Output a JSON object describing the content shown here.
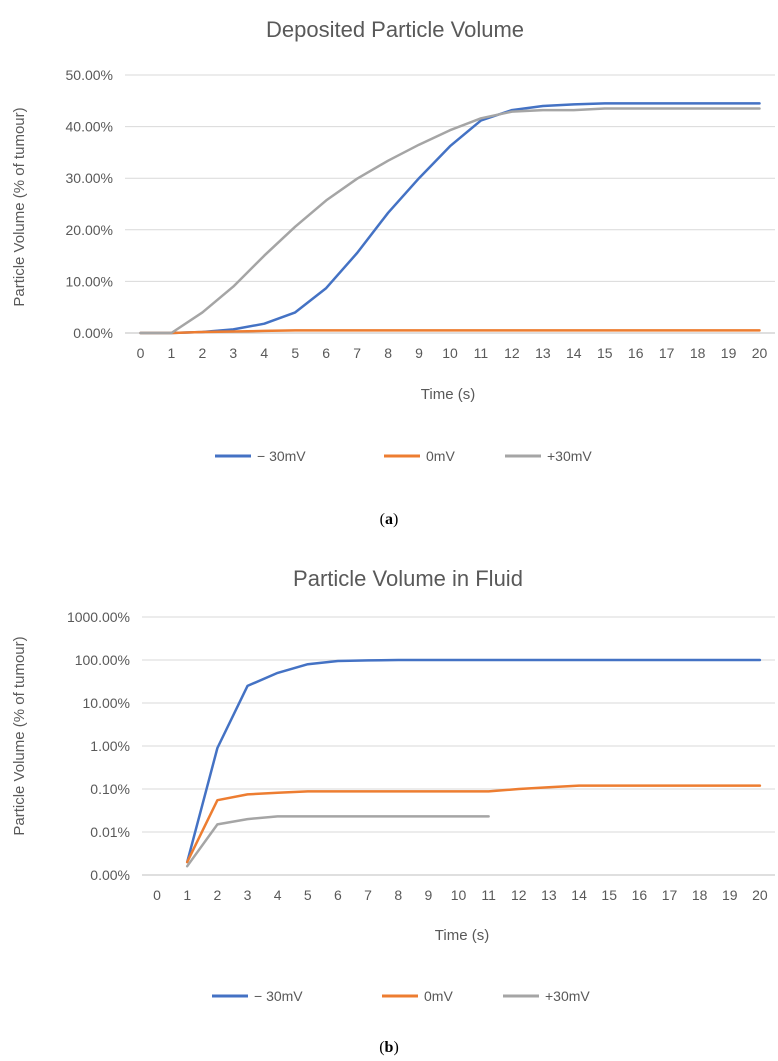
{
  "chart_data": [
    {
      "type": "line",
      "title": "Deposited Particle Volume",
      "xlabel": "Time (s)",
      "ylabel": "Particle Volume (% of tumour)",
      "panel_label": "a",
      "x": [
        0,
        1,
        2,
        3,
        4,
        5,
        6,
        7,
        8,
        9,
        10,
        11,
        12,
        13,
        14,
        15,
        16,
        17,
        18,
        19,
        20
      ],
      "x_ticks": [
        "0",
        "1",
        "2",
        "3",
        "4",
        "5",
        "6",
        "7",
        "8",
        "9",
        "10",
        "11",
        "12",
        "13",
        "14",
        "15",
        "16",
        "17",
        "18",
        "19",
        "20"
      ],
      "y_scale": "linear",
      "ylim": [
        0,
        50
      ],
      "y_ticks": [
        0,
        10,
        20,
        30,
        40,
        50
      ],
      "y_tick_labels": [
        "0.00%",
        "10.00%",
        "20.00%",
        "30.00%",
        "40.00%",
        "50.00%"
      ],
      "grid": "horizontal",
      "legend_position": "bottom",
      "series": [
        {
          "name": "− 30mV",
          "color": "#4472C4",
          "values": [
            0,
            0,
            0.2,
            0.7,
            1.8,
            4.0,
            8.7,
            15.5,
            23.3,
            30.0,
            36.2,
            41.2,
            43.2,
            44.0,
            44.3,
            44.5,
            44.5,
            44.5,
            44.5,
            44.5,
            44.5
          ]
        },
        {
          "name": "0mV",
          "color": "#ED7D31",
          "values": [
            0,
            0,
            0.2,
            0.3,
            0.4,
            0.5,
            0.5,
            0.5,
            0.5,
            0.5,
            0.5,
            0.5,
            0.5,
            0.5,
            0.5,
            0.5,
            0.5,
            0.5,
            0.5,
            0.5,
            0.5
          ]
        },
        {
          "name": "+30mV",
          "color": "#A5A5A5",
          "values": [
            0,
            0,
            4.0,
            9.0,
            15.0,
            20.6,
            25.7,
            29.9,
            33.4,
            36.5,
            39.3,
            41.6,
            42.9,
            43.2,
            43.2,
            43.5,
            43.5,
            43.5,
            43.5,
            43.5,
            43.5
          ]
        }
      ]
    },
    {
      "type": "line",
      "title": "Particle Volume in Fluid",
      "xlabel": "Time (s)",
      "ylabel": "Particle Volume (% of tumour)",
      "panel_label": "b",
      "x_ticks": [
        "0",
        "1",
        "2",
        "3",
        "4",
        "5",
        "6",
        "7",
        "8",
        "9",
        "10",
        "11",
        "12",
        "13",
        "14",
        "15",
        "16",
        "17",
        "18",
        "19",
        "20"
      ],
      "y_scale": "log",
      "ylim": [
        0.001,
        1000
      ],
      "y_ticks": [
        0.001,
        0.01,
        0.1,
        1,
        10,
        100,
        1000
      ],
      "y_tick_labels": [
        "0.00%",
        "0.01%",
        "0.10%",
        "1.00%",
        "10.00%",
        "100.00%",
        "1000.00%"
      ],
      "grid": "horizontal",
      "legend_position": "bottom",
      "series": [
        {
          "name": "− 30mV",
          "color": "#4472C4",
          "x": [
            1,
            2,
            3,
            4,
            5,
            6,
            7,
            8,
            9,
            10,
            11,
            12,
            13,
            14,
            15,
            16,
            17,
            18,
            19,
            20
          ],
          "values": [
            0.002,
            0.9,
            25,
            50,
            80,
            95,
            98,
            100,
            100,
            100,
            100,
            100,
            100,
            100,
            100,
            100,
            100,
            100,
            100,
            100
          ]
        },
        {
          "name": "0mV",
          "color": "#ED7D31",
          "x": [
            1,
            2,
            3,
            4,
            5,
            6,
            7,
            8,
            9,
            10,
            11,
            12,
            13,
            14,
            15,
            16,
            17,
            18,
            19,
            20
          ],
          "values": [
            0.002,
            0.055,
            0.075,
            0.082,
            0.088,
            0.088,
            0.088,
            0.088,
            0.088,
            0.088,
            0.088,
            0.1,
            0.11,
            0.12,
            0.12,
            0.12,
            0.12,
            0.12,
            0.12,
            0.12
          ]
        },
        {
          "name": "+30mV",
          "color": "#A5A5A5",
          "x": [
            1,
            2,
            3,
            4,
            5,
            6,
            7,
            8,
            9,
            10,
            11
          ],
          "values": [
            0.0016,
            0.015,
            0.02,
            0.023,
            0.023,
            0.023,
            0.023,
            0.023,
            0.023,
            0.023,
            0.023
          ]
        }
      ]
    }
  ]
}
